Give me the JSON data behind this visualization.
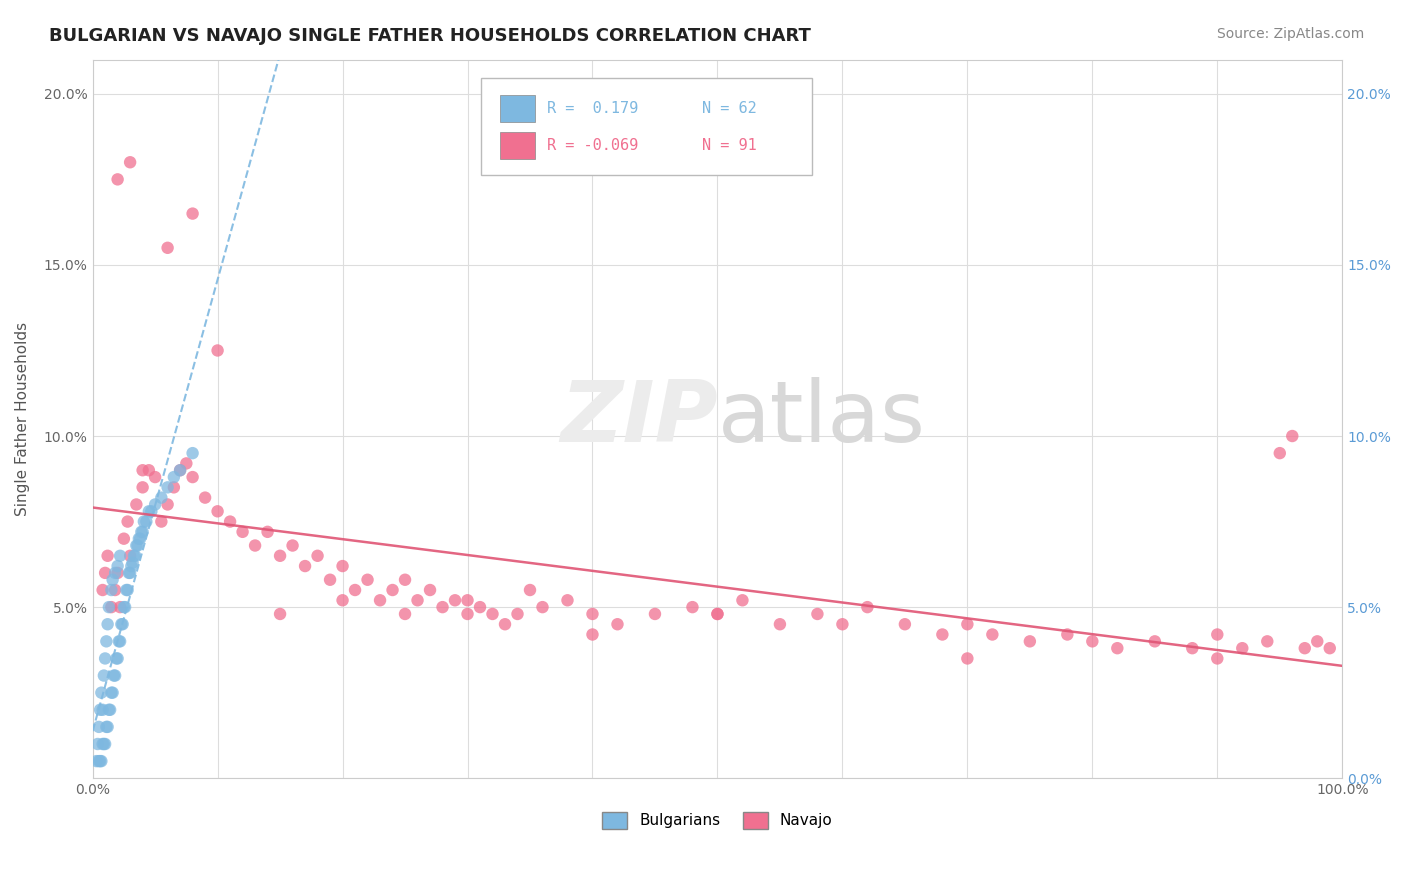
{
  "title": "BULGARIAN VS NAVAJO SINGLE FATHER HOUSEHOLDS CORRELATION CHART",
  "source": "Source: ZipAtlas.com",
  "ylabel": "Single Father Households",
  "watermark_zip": "ZIP",
  "watermark_atlas": "atlas",
  "legend_blue_r": "R =  0.179",
  "legend_blue_n": "N = 62",
  "legend_pink_r": "R = -0.069",
  "legend_pink_n": "N = 91",
  "blue_color": "#7eb8e0",
  "pink_color": "#f07090",
  "trend_blue_color": "#7eb8e0",
  "trend_pink_color": "#e05575",
  "bg_color": "#ffffff",
  "grid_color": "#dddddd",
  "right_tick_color": "#5b9bd5",
  "xmin": 0.0,
  "xmax": 1.0,
  "ymin": 0.0,
  "ymax": 0.21,
  "yticks": [
    0.0,
    0.05,
    0.1,
    0.15,
    0.2
  ],
  "ytick_labels_left": [
    "",
    "5.0%",
    "10.0%",
    "15.0%",
    "20.0%"
  ],
  "ytick_labels_right": [
    "0.0%",
    "5.0%",
    "10.0%",
    "15.0%",
    "20.0%"
  ],
  "xticks": [
    0.0,
    0.1,
    0.2,
    0.3,
    0.4,
    0.5,
    0.6,
    0.7,
    0.8,
    0.9,
    1.0
  ],
  "xtick_labels": [
    "0.0%",
    "",
    "",
    "",
    "",
    "",
    "",
    "",
    "",
    "",
    "100.0%"
  ],
  "blue_x": [
    0.003,
    0.004,
    0.005,
    0.005,
    0.006,
    0.006,
    0.007,
    0.007,
    0.008,
    0.008,
    0.009,
    0.009,
    0.01,
    0.01,
    0.011,
    0.011,
    0.012,
    0.012,
    0.013,
    0.013,
    0.014,
    0.015,
    0.015,
    0.016,
    0.016,
    0.017,
    0.018,
    0.018,
    0.019,
    0.02,
    0.02,
    0.021,
    0.022,
    0.022,
    0.023,
    0.024,
    0.025,
    0.026,
    0.027,
    0.028,
    0.029,
    0.03,
    0.031,
    0.032,
    0.033,
    0.034,
    0.035,
    0.036,
    0.037,
    0.038,
    0.039,
    0.04,
    0.041,
    0.043,
    0.045,
    0.047,
    0.05,
    0.055,
    0.06,
    0.065,
    0.07,
    0.08
  ],
  "blue_y": [
    0.005,
    0.01,
    0.005,
    0.015,
    0.005,
    0.02,
    0.005,
    0.025,
    0.01,
    0.02,
    0.01,
    0.03,
    0.01,
    0.035,
    0.015,
    0.04,
    0.015,
    0.045,
    0.02,
    0.05,
    0.02,
    0.025,
    0.055,
    0.025,
    0.058,
    0.03,
    0.03,
    0.06,
    0.035,
    0.035,
    0.062,
    0.04,
    0.04,
    0.065,
    0.045,
    0.045,
    0.05,
    0.05,
    0.055,
    0.055,
    0.06,
    0.06,
    0.062,
    0.063,
    0.065,
    0.065,
    0.068,
    0.068,
    0.07,
    0.07,
    0.072,
    0.072,
    0.075,
    0.075,
    0.078,
    0.078,
    0.08,
    0.082,
    0.085,
    0.088,
    0.09,
    0.095
  ],
  "pink_x": [
    0.008,
    0.01,
    0.012,
    0.015,
    0.018,
    0.02,
    0.022,
    0.025,
    0.028,
    0.03,
    0.035,
    0.04,
    0.045,
    0.05,
    0.055,
    0.06,
    0.065,
    0.07,
    0.075,
    0.08,
    0.09,
    0.1,
    0.11,
    0.12,
    0.13,
    0.14,
    0.15,
    0.16,
    0.17,
    0.18,
    0.19,
    0.2,
    0.21,
    0.22,
    0.23,
    0.24,
    0.25,
    0.26,
    0.27,
    0.28,
    0.29,
    0.3,
    0.31,
    0.32,
    0.33,
    0.34,
    0.35,
    0.36,
    0.38,
    0.4,
    0.42,
    0.45,
    0.48,
    0.5,
    0.52,
    0.55,
    0.58,
    0.6,
    0.62,
    0.65,
    0.68,
    0.7,
    0.72,
    0.75,
    0.78,
    0.8,
    0.82,
    0.85,
    0.88,
    0.9,
    0.92,
    0.94,
    0.95,
    0.96,
    0.97,
    0.98,
    0.99,
    0.02,
    0.03,
    0.04,
    0.06,
    0.08,
    0.1,
    0.15,
    0.2,
    0.25,
    0.3,
    0.4,
    0.5,
    0.7,
    0.9
  ],
  "pink_y": [
    0.055,
    0.06,
    0.065,
    0.05,
    0.055,
    0.06,
    0.05,
    0.07,
    0.075,
    0.065,
    0.08,
    0.085,
    0.09,
    0.088,
    0.075,
    0.08,
    0.085,
    0.09,
    0.092,
    0.088,
    0.082,
    0.078,
    0.075,
    0.072,
    0.068,
    0.072,
    0.065,
    0.068,
    0.062,
    0.065,
    0.058,
    0.062,
    0.055,
    0.058,
    0.052,
    0.055,
    0.058,
    0.052,
    0.055,
    0.05,
    0.052,
    0.048,
    0.05,
    0.048,
    0.045,
    0.048,
    0.055,
    0.05,
    0.052,
    0.048,
    0.045,
    0.048,
    0.05,
    0.048,
    0.052,
    0.045,
    0.048,
    0.045,
    0.05,
    0.045,
    0.042,
    0.045,
    0.042,
    0.04,
    0.042,
    0.04,
    0.038,
    0.04,
    0.038,
    0.042,
    0.038,
    0.04,
    0.095,
    0.1,
    0.038,
    0.04,
    0.038,
    0.175,
    0.18,
    0.09,
    0.155,
    0.165,
    0.125,
    0.048,
    0.052,
    0.048,
    0.052,
    0.042,
    0.048,
    0.035,
    0.035
  ]
}
